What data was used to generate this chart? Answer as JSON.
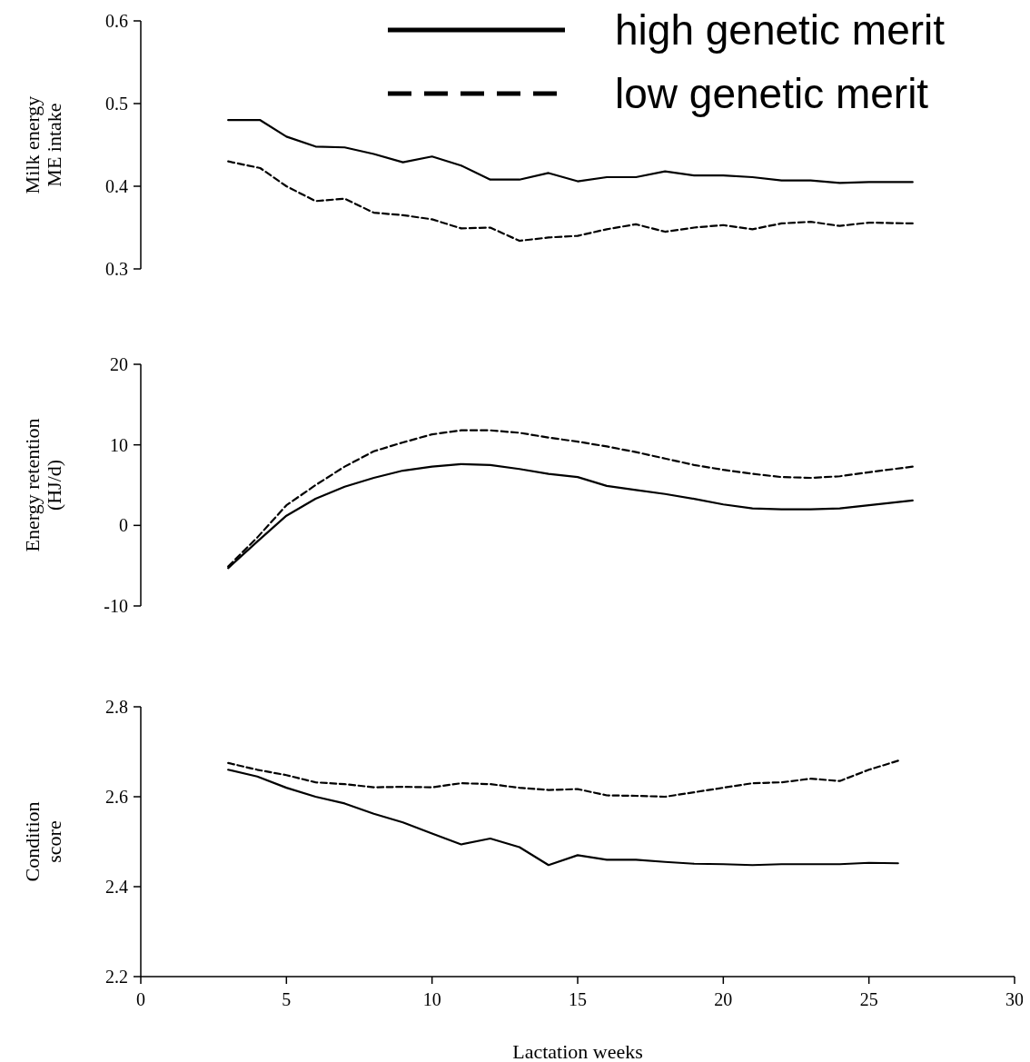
{
  "chart_data": [
    {
      "type": "line",
      "ylabel": "Milk energy\nME intake",
      "xlim": [
        0,
        30
      ],
      "ylim": [
        0.3,
        0.6
      ],
      "yticks": [
        0.3,
        0.4,
        0.5,
        0.6
      ],
      "tick_labels": "y",
      "grid": false,
      "legend": "top right",
      "x": [
        3,
        4.1,
        5,
        6,
        7,
        8,
        9,
        10,
        11,
        12,
        13,
        14,
        15,
        16,
        17,
        18,
        19,
        20,
        21,
        22,
        23,
        24,
        25,
        26.5
      ],
      "series": [
        {
          "name": "high genetic merit",
          "color": "#000000",
          "line_style": "solid",
          "values": [
            0.48,
            0.48,
            0.46,
            0.448,
            0.447,
            0.439,
            0.429,
            0.436,
            0.425,
            0.408,
            0.408,
            0.416,
            0.406,
            0.411,
            0.411,
            0.418,
            0.413,
            0.413,
            0.411,
            0.407,
            0.407,
            0.404,
            0.405,
            0.405
          ]
        },
        {
          "name": "low genetic merit",
          "color": "#000000",
          "line_style": "dashed",
          "values": [
            0.43,
            0.422,
            0.4,
            0.382,
            0.385,
            0.368,
            0.365,
            0.36,
            0.349,
            0.35,
            0.334,
            0.338,
            0.34,
            0.348,
            0.354,
            0.345,
            0.35,
            0.353,
            0.348,
            0.355,
            0.357,
            0.352,
            0.356,
            0.355
          ]
        }
      ]
    },
    {
      "type": "line",
      "ylabel": "Energy retention\n(HJ/d)",
      "xlim": [
        0,
        30
      ],
      "ylim": [
        -10,
        20
      ],
      "yticks": [
        -10,
        0,
        10,
        20
      ],
      "tick_labels": "y",
      "grid": false,
      "x": [
        3,
        4,
        5,
        6,
        7,
        8,
        9,
        10,
        11,
        12,
        13,
        14,
        15,
        16,
        17,
        18,
        19,
        20,
        21,
        22,
        23,
        24,
        25,
        26.5
      ],
      "series": [
        {
          "color": "#000000",
          "line_style": "solid",
          "values": [
            -5.3,
            -2,
            1.2,
            3.3,
            4.8,
            5.9,
            6.8,
            7.3,
            7.6,
            7.5,
            7,
            6.4,
            6,
            4.9,
            4.4,
            3.9,
            3.3,
            2.6,
            2.1,
            2,
            2,
            2.1,
            2.5,
            3.1
          ]
        },
        {
          "color": "#000000",
          "line_style": "dashed",
          "values": [
            -5.1,
            -1.5,
            2.5,
            5,
            7.3,
            9.2,
            10.3,
            11.3,
            11.8,
            11.8,
            11.5,
            10.9,
            10.4,
            9.8,
            9.1,
            8.3,
            7.5,
            6.9,
            6.4,
            6,
            5.9,
            6.1,
            6.6,
            7.3
          ]
        }
      ]
    },
    {
      "type": "line",
      "ylabel": "Condition\nscore",
      "xlabel": "Lactation weeks",
      "xlim": [
        0,
        30
      ],
      "xticks": [
        0,
        5,
        10,
        15,
        20,
        25,
        30
      ],
      "ylim": [
        2.2,
        2.8
      ],
      "yticks": [
        2.2,
        2.4,
        2.6,
        2.8
      ],
      "grid": false,
      "x": [
        3,
        4,
        5,
        6,
        7,
        8,
        9,
        10,
        11,
        12,
        13,
        14,
        15,
        16,
        17,
        18,
        19,
        20,
        21,
        22,
        23,
        24,
        25,
        26
      ],
      "series": [
        {
          "color": "#000000",
          "line_style": "solid",
          "values": [
            2.66,
            2.645,
            2.62,
            2.6,
            2.585,
            2.562,
            2.543,
            2.518,
            2.494,
            2.507,
            2.488,
            2.448,
            2.47,
            2.46,
            2.46,
            2.455,
            2.451,
            2.45,
            2.448,
            2.45,
            2.45,
            2.45,
            2.453,
            2.452
          ]
        },
        {
          "color": "#000000",
          "line_style": "dashed",
          "values": [
            2.675,
            2.66,
            2.648,
            2.632,
            2.628,
            2.621,
            2.622,
            2.621,
            2.63,
            2.628,
            2.62,
            2.615,
            2.617,
            2.603,
            2.602,
            2.6,
            2.61,
            2.62,
            2.63,
            2.632,
            2.64,
            2.635,
            2.66,
            2.68
          ]
        }
      ]
    }
  ]
}
